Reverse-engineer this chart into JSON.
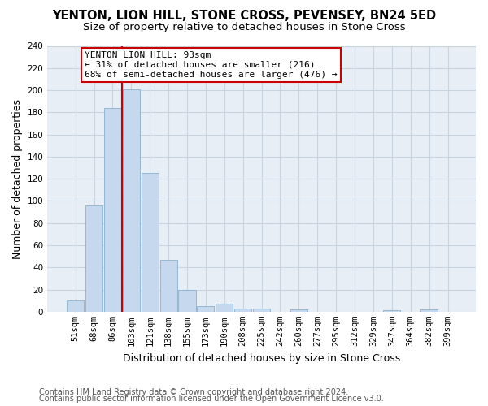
{
  "title": "YENTON, LION HILL, STONE CROSS, PEVENSEY, BN24 5ED",
  "subtitle": "Size of property relative to detached houses in Stone Cross",
  "xlabel": "Distribution of detached houses by size in Stone Cross",
  "ylabel": "Number of detached properties",
  "footnote1": "Contains HM Land Registry data © Crown copyright and database right 2024.",
  "footnote2": "Contains public sector information licensed under the Open Government Licence v3.0.",
  "bar_labels": [
    "51sqm",
    "68sqm",
    "86sqm",
    "103sqm",
    "121sqm",
    "138sqm",
    "155sqm",
    "173sqm",
    "190sqm",
    "208sqm",
    "225sqm",
    "242sqm",
    "260sqm",
    "277sqm",
    "295sqm",
    "312sqm",
    "329sqm",
    "347sqm",
    "364sqm",
    "382sqm",
    "399sqm"
  ],
  "bar_values": [
    10,
    96,
    184,
    201,
    125,
    47,
    20,
    5,
    7,
    3,
    3,
    0,
    2,
    0,
    0,
    0,
    0,
    1,
    0,
    2,
    0
  ],
  "bar_color": "#c5d8ed",
  "bar_edge_color": "#8ab0cc",
  "ylim": [
    0,
    240
  ],
  "yticks": [
    0,
    20,
    40,
    60,
    80,
    100,
    120,
    140,
    160,
    180,
    200,
    220,
    240
  ],
  "property_value": 93,
  "property_label": "YENTON LION HILL: 93sqm",
  "annotation_line1": "← 31% of detached houses are smaller (216)",
  "annotation_line2": "68% of semi-detached houses are larger (476) →",
  "vline_color": "#cc0000",
  "annotation_box_color": "#cc0000",
  "background_color": "#ffffff",
  "plot_bg_color": "#e8eef5",
  "grid_color": "#c8d4e0",
  "title_fontsize": 10.5,
  "subtitle_fontsize": 9.5,
  "axis_label_fontsize": 9,
  "tick_fontsize": 7.5,
  "annotation_fontsize": 8,
  "footnote_fontsize": 7
}
